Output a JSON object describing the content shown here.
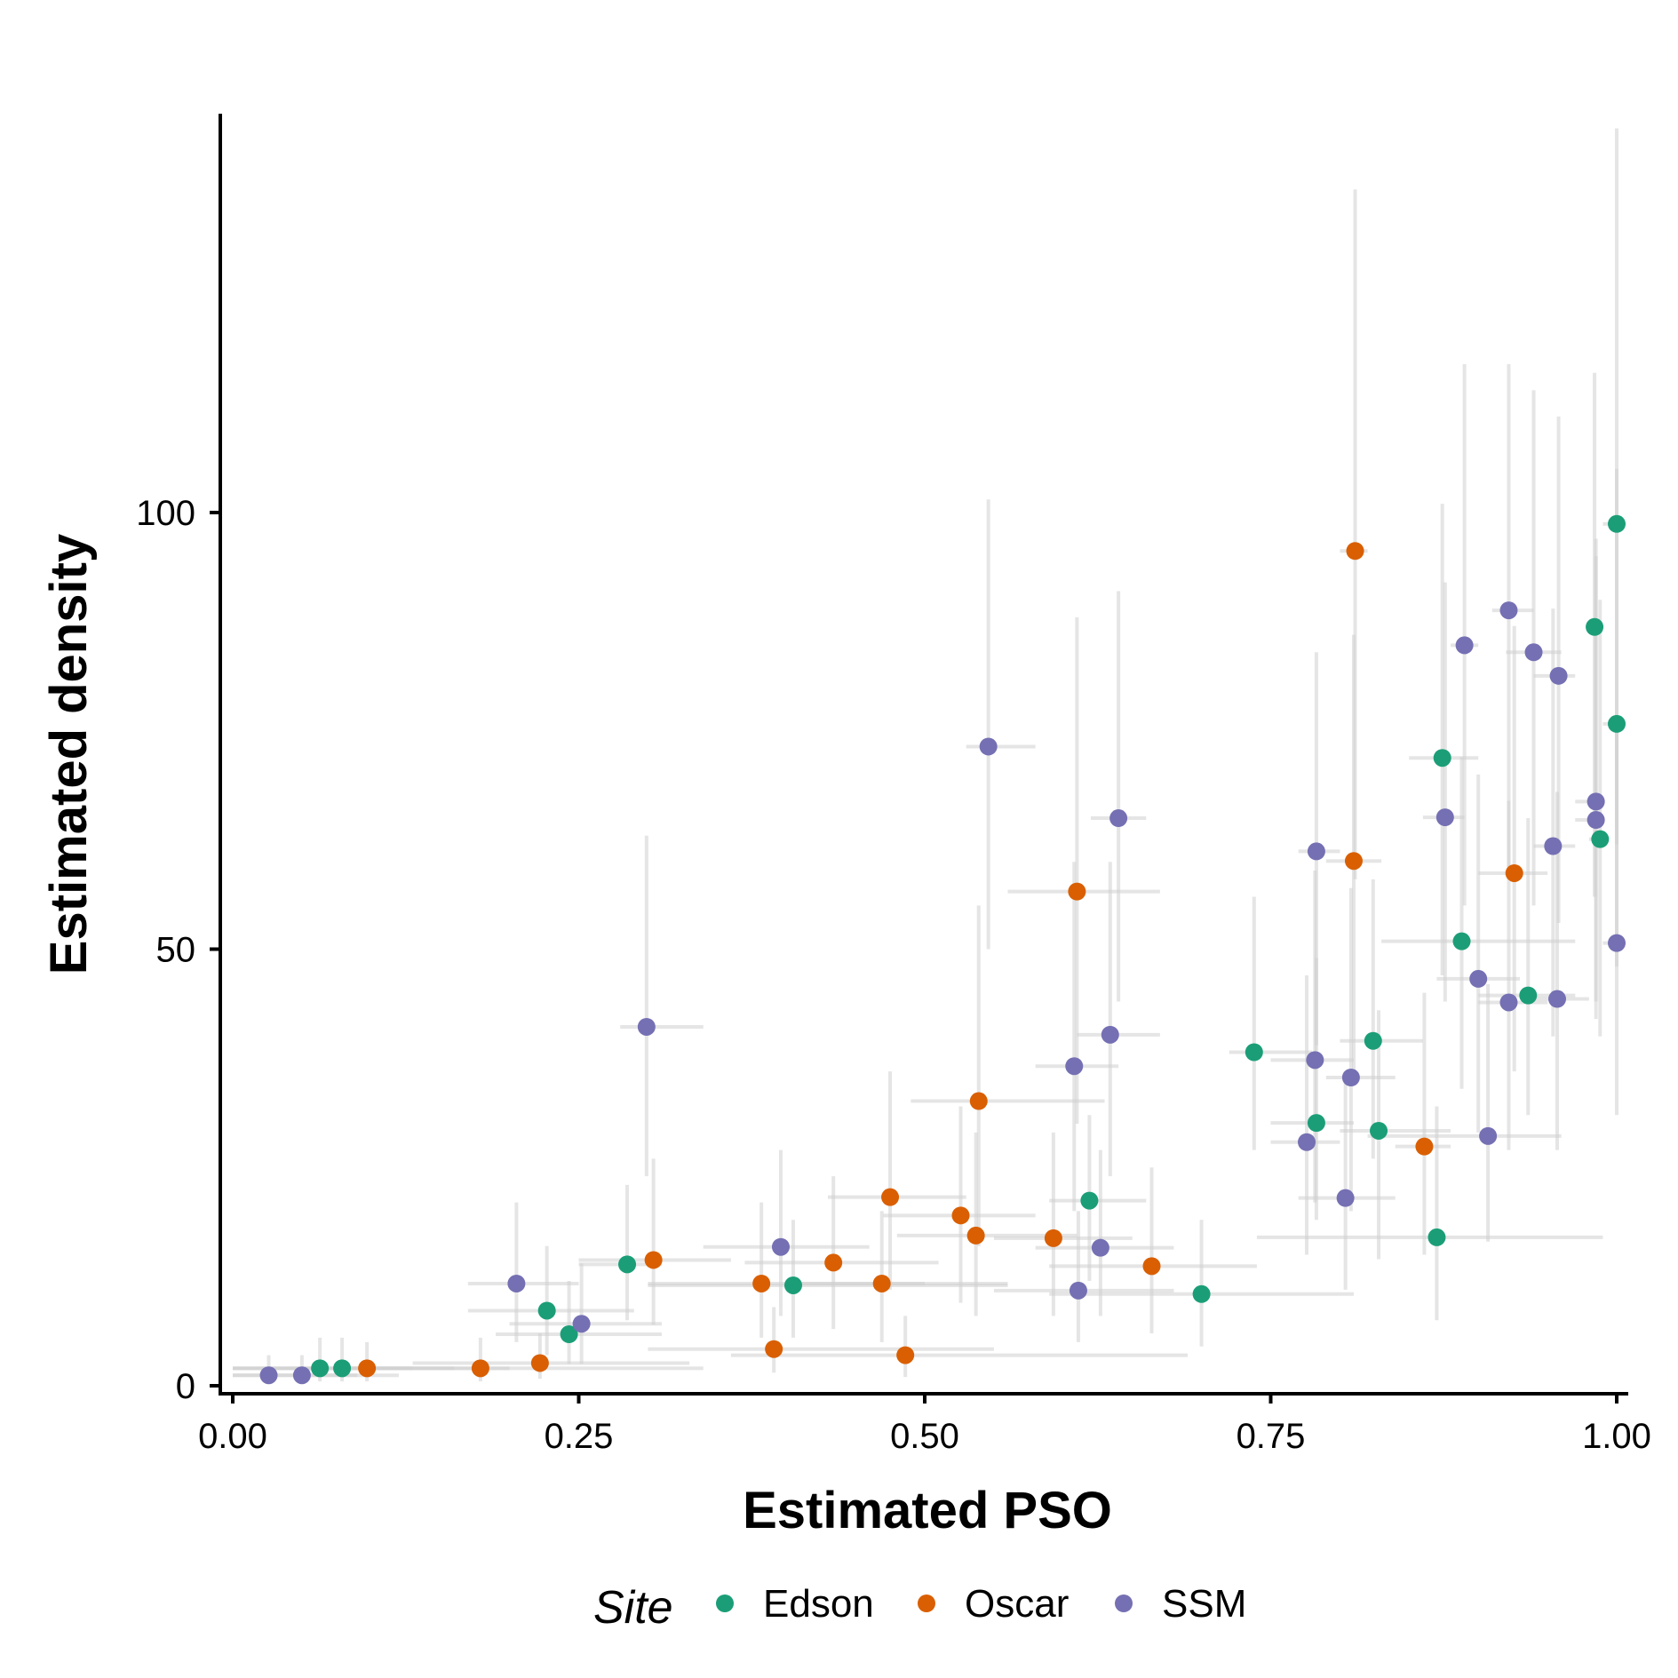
{
  "chart_data": {
    "type": "scatter",
    "title": "",
    "xlabel": "Estimated PSO",
    "ylabel": "Estimated density",
    "xlim": [
      -0.005,
      1.01
    ],
    "ylim": [
      -1,
      146
    ],
    "x_ticks": [
      0,
      0.25,
      0.5,
      0.75,
      1.0
    ],
    "x_tick_labels": [
      "0.00",
      "0.25",
      "0.50",
      "0.75",
      "1.00"
    ],
    "y_ticks": [
      0,
      50,
      100
    ],
    "y_tick_labels": [
      "0",
      "50",
      "100"
    ],
    "grid": false,
    "legend": {
      "title": "Site",
      "position": "bottom",
      "entries": [
        "Edson",
        "Oscar",
        "SSM"
      ]
    },
    "error_bars": true,
    "series": [
      {
        "name": "Edson",
        "color": "#1b9e77",
        "points": [
          {
            "x": 0.063,
            "y": 2.0,
            "xerr": [
              0.0,
              0.13
            ],
            "yerr": [
              0.5,
              5.5
            ]
          },
          {
            "x": 0.079,
            "y": 2.0,
            "xerr": [
              0.0,
              0.16
            ],
            "yerr": [
              0.5,
              5.5
            ]
          },
          {
            "x": 0.227,
            "y": 8.6,
            "xerr": [
              0.17,
              0.29
            ],
            "yerr": [
              3.5,
              16.0
            ]
          },
          {
            "x": 0.243,
            "y": 5.9,
            "xerr": [
              0.19,
              0.31
            ],
            "yerr": [
              2.5,
              12.0
            ]
          },
          {
            "x": 0.285,
            "y": 13.9,
            "xerr": [
              0.25,
              0.31
            ],
            "yerr": [
              7.5,
              23.0
            ]
          },
          {
            "x": 0.405,
            "y": 11.5,
            "xerr": [
              0.3,
              0.56
            ],
            "yerr": [
              5.5,
              19.0
            ]
          },
          {
            "x": 0.619,
            "y": 21.2,
            "xerr": [
              0.59,
              0.66
            ],
            "yerr": [
              12.0,
              31.0
            ]
          },
          {
            "x": 0.7,
            "y": 10.5,
            "xerr": [
              0.59,
              0.81
            ],
            "yerr": [
              4.5,
              19.0
            ]
          },
          {
            "x": 0.738,
            "y": 38.2,
            "xerr": [
              0.72,
              0.78
            ],
            "yerr": [
              27.0,
              56.0
            ]
          },
          {
            "x": 0.783,
            "y": 30.1,
            "xerr": [
              0.75,
              0.81
            ],
            "yerr": [
              19.0,
              49.0
            ]
          },
          {
            "x": 0.824,
            "y": 39.5,
            "xerr": [
              0.8,
              0.86
            ],
            "yerr": [
              26.0,
              58.0
            ]
          },
          {
            "x": 0.828,
            "y": 29.2,
            "xerr": [
              0.8,
              0.88
            ],
            "yerr": [
              14.5,
              43.0
            ]
          },
          {
            "x": 0.87,
            "y": 17.0,
            "xerr": [
              0.74,
              0.99
            ],
            "yerr": [
              7.5,
              32.0
            ]
          },
          {
            "x": 0.874,
            "y": 71.9,
            "xerr": [
              0.85,
              0.9
            ],
            "yerr": [
              47.0,
              101.0
            ]
          },
          {
            "x": 0.888,
            "y": 50.9,
            "xerr": [
              0.83,
              0.97
            ],
            "yerr": [
              34.0,
              72.0
            ]
          },
          {
            "x": 0.936,
            "y": 44.7,
            "xerr": [
              0.9,
              0.97
            ],
            "yerr": [
              31.0,
              65.0
            ]
          },
          {
            "x": 0.984,
            "y": 86.9,
            "xerr": [
              0.98,
              0.99
            ],
            "yerr": [
              56.0,
              116.0
            ]
          },
          {
            "x": 0.988,
            "y": 62.6,
            "xerr": [
              0.98,
              0.99
            ],
            "yerr": [
              40.0,
              90.0
            ]
          },
          {
            "x": 1.0,
            "y": 75.8,
            "xerr": [
              0.99,
              1.0
            ],
            "yerr": [
              48.0,
              105.0
            ]
          },
          {
            "x": 1.0,
            "y": 98.7,
            "xerr": [
              0.99,
              1.0
            ],
            "yerr": [
              62.0,
              144.0
            ]
          }
        ]
      },
      {
        "name": "Oscar",
        "color": "#d95f02",
        "points": [
          {
            "x": 0.097,
            "y": 2.0,
            "xerr": [
              0.0,
              0.2
            ],
            "yerr": [
              0.5,
              5.0
            ]
          },
          {
            "x": 0.179,
            "y": 2.0,
            "xerr": [
              0.08,
              0.34
            ],
            "yerr": [
              0.5,
              5.5
            ]
          },
          {
            "x": 0.222,
            "y": 2.6,
            "xerr": [
              0.13,
              0.33
            ],
            "yerr": [
              0.8,
              6.0
            ]
          },
          {
            "x": 0.304,
            "y": 14.4,
            "xerr": [
              0.25,
              0.36
            ],
            "yerr": [
              7.0,
              26.0
            ]
          },
          {
            "x": 0.382,
            "y": 11.7,
            "xerr": [
              0.3,
              0.5
            ],
            "yerr": [
              5.5,
              21.0
            ]
          },
          {
            "x": 0.391,
            "y": 4.2,
            "xerr": [
              0.3,
              0.55
            ],
            "yerr": [
              1.5,
              9.0
            ]
          },
          {
            "x": 0.434,
            "y": 14.1,
            "xerr": [
              0.37,
              0.51
            ],
            "yerr": [
              6.5,
              24.0
            ]
          },
          {
            "x": 0.469,
            "y": 11.7,
            "xerr": [
              0.4,
              0.56
            ],
            "yerr": [
              5.0,
              20.0
            ]
          },
          {
            "x": 0.475,
            "y": 21.6,
            "xerr": [
              0.43,
              0.53
            ],
            "yerr": [
              11.0,
              36.0
            ]
          },
          {
            "x": 0.486,
            "y": 3.5,
            "xerr": [
              0.36,
              0.69
            ],
            "yerr": [
              1.0,
              8.0
            ]
          },
          {
            "x": 0.526,
            "y": 19.5,
            "xerr": [
              0.47,
              0.58
            ],
            "yerr": [
              9.5,
              32.0
            ]
          },
          {
            "x": 0.537,
            "y": 17.2,
            "xerr": [
              0.48,
              0.61
            ],
            "yerr": [
              8.0,
              29.0
            ]
          },
          {
            "x": 0.539,
            "y": 32.6,
            "xerr": [
              0.49,
              0.63
            ],
            "yerr": [
              16.0,
              55.0
            ]
          },
          {
            "x": 0.593,
            "y": 16.9,
            "xerr": [
              0.55,
              0.65
            ],
            "yerr": [
              8.0,
              29.0
            ]
          },
          {
            "x": 0.61,
            "y": 56.6,
            "xerr": [
              0.56,
              0.67
            ],
            "yerr": [
              30.0,
              88.0
            ]
          },
          {
            "x": 0.664,
            "y": 13.7,
            "xerr": [
              0.59,
              0.74
            ],
            "yerr": [
              6.0,
              25.0
            ]
          },
          {
            "x": 0.81,
            "y": 60.1,
            "xerr": [
              0.79,
              0.83
            ],
            "yerr": [
              36.0,
              86.0
            ]
          },
          {
            "x": 0.811,
            "y": 95.6,
            "xerr": [
              0.8,
              0.82
            ],
            "yerr": [
              58.0,
              137.0
            ]
          },
          {
            "x": 0.861,
            "y": 27.4,
            "xerr": [
              0.84,
              0.88
            ],
            "yerr": [
              15.0,
              45.0
            ]
          },
          {
            "x": 0.926,
            "y": 58.7,
            "xerr": [
              0.9,
              0.95
            ],
            "yerr": [
              36.0,
              87.0
            ]
          }
        ]
      },
      {
        "name": "SSM",
        "color": "#7570b3",
        "points": [
          {
            "x": 0.026,
            "y": 1.2,
            "xerr": [
              0.0,
              0.09
            ],
            "yerr": [
              0.3,
              3.5
            ]
          },
          {
            "x": 0.05,
            "y": 1.2,
            "xerr": [
              0.0,
              0.12
            ],
            "yerr": [
              0.3,
              3.5
            ]
          },
          {
            "x": 0.205,
            "y": 11.7,
            "xerr": [
              0.17,
              0.25
            ],
            "yerr": [
              5.0,
              21.0
            ]
          },
          {
            "x": 0.252,
            "y": 7.1,
            "xerr": [
              0.2,
              0.31
            ],
            "yerr": [
              2.5,
              14.0
            ]
          },
          {
            "x": 0.299,
            "y": 41.1,
            "xerr": [
              0.28,
              0.34
            ],
            "yerr": [
              24.0,
              63.0
            ]
          },
          {
            "x": 0.396,
            "y": 15.9,
            "xerr": [
              0.34,
              0.46
            ],
            "yerr": [
              8.0,
              27.0
            ]
          },
          {
            "x": 0.546,
            "y": 73.2,
            "xerr": [
              0.53,
              0.58
            ],
            "yerr": [
              50.0,
              101.5
            ]
          },
          {
            "x": 0.608,
            "y": 36.6,
            "xerr": [
              0.58,
              0.64
            ],
            "yerr": [
              20.0,
              60.0
            ]
          },
          {
            "x": 0.611,
            "y": 10.9,
            "xerr": [
              0.55,
              0.68
            ],
            "yerr": [
              5.0,
              20.0
            ]
          },
          {
            "x": 0.627,
            "y": 15.8,
            "xerr": [
              0.58,
              0.68
            ],
            "yerr": [
              8.0,
              27.0
            ]
          },
          {
            "x": 0.634,
            "y": 40.2,
            "xerr": [
              0.61,
              0.67
            ],
            "yerr": [
              24.0,
              60.0
            ]
          },
          {
            "x": 0.64,
            "y": 65.0,
            "xerr": [
              0.62,
              0.66
            ],
            "yerr": [
              44.0,
              91.0
            ]
          },
          {
            "x": 0.776,
            "y": 27.9,
            "xerr": [
              0.75,
              0.8
            ],
            "yerr": [
              15.0,
              47.0
            ]
          },
          {
            "x": 0.782,
            "y": 37.3,
            "xerr": [
              0.75,
              0.81
            ],
            "yerr": [
              21.0,
              59.0
            ]
          },
          {
            "x": 0.783,
            "y": 61.2,
            "xerr": [
              0.77,
              0.8
            ],
            "yerr": [
              39.0,
              84.0
            ]
          },
          {
            "x": 0.804,
            "y": 21.5,
            "xerr": [
              0.77,
              0.84
            ],
            "yerr": [
              11.0,
              36.0
            ]
          },
          {
            "x": 0.808,
            "y": 35.3,
            "xerr": [
              0.79,
              0.84
            ],
            "yerr": [
              20.0,
              57.0
            ]
          },
          {
            "x": 0.876,
            "y": 65.1,
            "xerr": [
              0.86,
              0.89
            ],
            "yerr": [
              44.0,
              92.0
            ]
          },
          {
            "x": 0.89,
            "y": 84.8,
            "xerr": [
              0.88,
              0.9
            ],
            "yerr": [
              55.0,
              117.0
            ]
          },
          {
            "x": 0.9,
            "y": 46.6,
            "xerr": [
              0.87,
              0.93
            ],
            "yerr": [
              29.0,
              70.0
            ]
          },
          {
            "x": 0.907,
            "y": 28.6,
            "xerr": [
              0.82,
              0.96
            ],
            "yerr": [
              16.5,
              46.0
            ]
          },
          {
            "x": 0.922,
            "y": 43.9,
            "xerr": [
              0.9,
              0.95
            ],
            "yerr": [
              27.0,
              67.0
            ]
          },
          {
            "x": 0.922,
            "y": 88.8,
            "xerr": [
              0.91,
              0.94
            ],
            "yerr": [
              59.0,
              117.0
            ]
          },
          {
            "x": 0.94,
            "y": 84.0,
            "xerr": [
              0.92,
              0.96
            ],
            "yerr": [
              55.0,
              114.0
            ]
          },
          {
            "x": 0.954,
            "y": 61.8,
            "xerr": [
              0.94,
              0.97
            ],
            "yerr": [
              40.0,
              89.0
            ]
          },
          {
            "x": 0.957,
            "y": 44.3,
            "xerr": [
              0.94,
              0.98
            ],
            "yerr": [
              27.0,
              68.0
            ]
          },
          {
            "x": 0.958,
            "y": 81.3,
            "xerr": [
              0.94,
              0.97
            ],
            "yerr": [
              53.0,
              111.0
            ]
          },
          {
            "x": 0.985,
            "y": 66.9,
            "xerr": [
              0.97,
              0.99
            ],
            "yerr": [
              44.0,
              97.0
            ]
          },
          {
            "x": 0.985,
            "y": 64.8,
            "xerr": [
              0.97,
              0.99
            ],
            "yerr": [
              42.0,
              95.0
            ]
          },
          {
            "x": 1.0,
            "y": 50.7,
            "xerr": [
              0.99,
              1.0
            ],
            "yerr": [
              31.0,
              76.0
            ]
          }
        ]
      }
    ]
  }
}
